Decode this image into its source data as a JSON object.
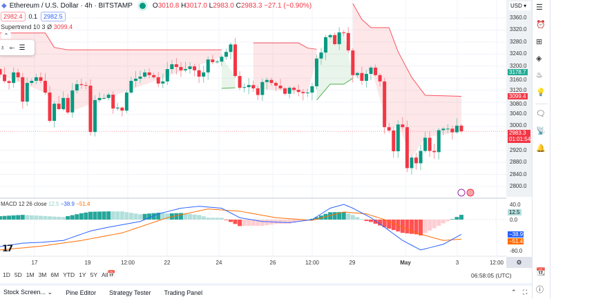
{
  "header": {
    "symbol": "Ethereum / U.S. Dollar · 4h · BITSTAMP",
    "o_label": "O",
    "o": "3010.8",
    "h_label": "H",
    "h": "3017.0",
    "l_label": "L",
    "l": "2983.0",
    "c_label": "C",
    "c": "2983.3",
    "change": "−27.1 (−0.90%)",
    "bid": "2982.4",
    "spread": "0.1",
    "ask": "2982.5"
  },
  "supertrend": {
    "label": "Supertrend 10 3",
    "symbol": "Ø",
    "value": "3099.4"
  },
  "macd": {
    "label": "MACD 12 26 close",
    "hist": "12.5",
    "macd": "−38.9",
    "signal": "−51.4"
  },
  "price_axis": {
    "currency": "USD",
    "labels": [
      "3360.0",
      "3320.0",
      "3280.0",
      "3240.0",
      "3200.0",
      "3160.0",
      "3120.0",
      "3080.0",
      "3040.0",
      "3000.0",
      "2920.0",
      "2880.0",
      "2840.0",
      "2800.0"
    ],
    "tag_green": "3178.7",
    "tag_st": "3099.4",
    "tag_last": "2983.3",
    "countdown": "01:01:54"
  },
  "macd_axis": {
    "labels": [
      "40.0",
      "0.0",
      "-80.0"
    ],
    "hist": "12.5",
    "macd": "−38.9",
    "signal": "−51.4"
  },
  "time_axis": [
    "17",
    "19",
    "12:00",
    "22",
    "24",
    "26",
    "12:00",
    "29",
    "May",
    "3",
    "12:00"
  ],
  "ranges": [
    "1D",
    "5D",
    "1M",
    "3M",
    "6M",
    "YTD",
    "1Y",
    "5Y",
    "All"
  ],
  "clock": "06:58:05 (UTC)",
  "footer": {
    "tabs": [
      "Stock Screen...",
      "Pine Editor",
      "Strategy Tester",
      "Trading Panel"
    ]
  },
  "colors": {
    "up": "#089981",
    "down": "#f23645",
    "macd": "#2962ff",
    "signal": "#ff6d00"
  },
  "chart_data": {
    "type": "candlestick",
    "first_open": 3190,
    "closes": [
      3172,
      3150,
      3144,
      3179,
      3163,
      3082,
      3144,
      3151,
      3163,
      3151,
      3112,
      3018,
      3075,
      3057,
      3094,
      3046,
      3119,
      3140,
      3137,
      3135,
      2981,
      3087,
      3094,
      3094,
      3105,
      3059,
      3062,
      3052,
      3112,
      3151,
      3158,
      3165,
      3179,
      3170,
      3163,
      3142,
      3149,
      3190,
      3206,
      3197,
      3186,
      3190,
      3199,
      3186,
      3165,
      3179,
      3222,
      3213,
      3215,
      3231,
      3247,
      3272,
      3167,
      3128,
      3130,
      3137,
      3126,
      3104,
      3147,
      3154,
      3144,
      3135,
      3126,
      3108,
      3128,
      3121,
      3114,
      3110,
      3112,
      3133,
      3225,
      3245,
      3296,
      3303,
      3273,
      3312,
      3310,
      3252,
      3170,
      3177,
      3151,
      3174,
      3195,
      3170,
      3149,
      2997,
      2986,
      2917,
      3006,
      2997,
      2861,
      2896,
      2877,
      2918,
      2962,
      2918,
      2914,
      2987,
      2992,
      2992,
      2980,
      3002,
      2983.3
    ],
    "ylim": [
      2770,
      3385
    ],
    "supertrend_down": [
      [
        [
          0,
          3310
        ],
        [
          10,
          3310
        ],
        [
          12,
          3262
        ],
        [
          15,
          3254
        ],
        [
          49,
          3254
        ]
      ],
      [
        [
          56,
          3277
        ],
        [
          66,
          3277
        ],
        [
          68,
          3260
        ],
        [
          70,
          3256
        ]
      ],
      [
        [
          78,
          3408
        ],
        [
          80,
          3355
        ],
        [
          82,
          3328
        ],
        [
          86,
          3328
        ],
        [
          88,
          3248
        ],
        [
          91,
          3163
        ],
        [
          94,
          3103
        ],
        [
          102,
          3099.4
        ]
      ]
    ],
    "supertrend_up": [
      [
        [
          49,
          3126
        ],
        [
          52,
          3128
        ]
      ],
      [
        [
          70,
          3087
        ],
        [
          73,
          3140
        ],
        [
          76,
          3140
        ],
        [
          78,
          3160
        ]
      ]
    ],
    "macd_line": [
      [
        0,
        -71
      ],
      [
        5,
        -62
      ],
      [
        9,
        -60
      ],
      [
        14,
        -55
      ],
      [
        20,
        -30
      ],
      [
        24,
        -20
      ],
      [
        31,
        -5
      ],
      [
        35,
        15
      ],
      [
        40,
        30
      ],
      [
        44,
        35
      ],
      [
        49,
        30
      ],
      [
        53,
        5
      ],
      [
        58,
        -5
      ],
      [
        64,
        -8
      ],
      [
        69,
        0
      ],
      [
        73,
        30
      ],
      [
        76,
        40
      ],
      [
        78,
        30
      ],
      [
        82,
        5
      ],
      [
        85,
        -20
      ],
      [
        89,
        -55
      ],
      [
        93,
        -80
      ],
      [
        98,
        -65
      ],
      [
        102,
        -38.9
      ]
    ],
    "signal_line": [
      [
        0,
        -80
      ],
      [
        9,
        -70
      ],
      [
        18,
        -55
      ],
      [
        27,
        -35
      ],
      [
        37,
        5
      ],
      [
        46,
        28
      ],
      [
        53,
        22
      ],
      [
        61,
        5
      ],
      [
        69,
        -2
      ],
      [
        76,
        20
      ],
      [
        81,
        15
      ],
      [
        85,
        0
      ],
      [
        92,
        -35
      ],
      [
        98,
        -55
      ],
      [
        102,
        -51.4
      ]
    ],
    "macd_ylim": [
      -100,
      50
    ]
  }
}
